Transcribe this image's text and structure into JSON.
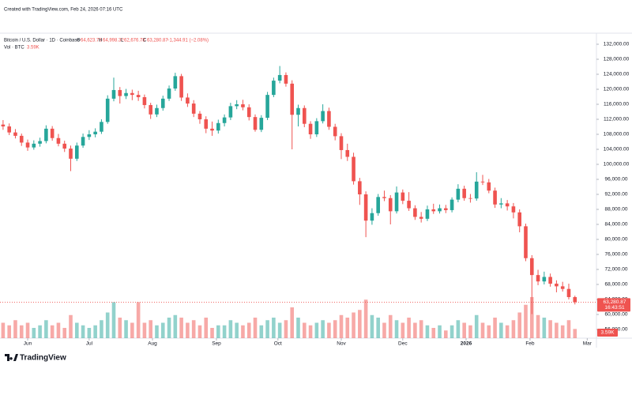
{
  "header": {
    "created": "Created with TradingView.com, Feb 24, 2026 07:16 UTC",
    "branding": "TradingView"
  },
  "chart_data": {
    "type": "candlestick",
    "legend": {
      "symbol": "Bitcoin / U.S. Dollar · 1D · Coinbase",
      "open_label": "O",
      "open": "64,623.78",
      "high_label": "H",
      "high": "64,998.32",
      "low_label": "L",
      "low": "62,676.78",
      "close_label": "C",
      "close": "63,280.87",
      "change": "−1,344.91 (−2.08%)",
      "volume_name": "Vol · BTC",
      "volume": "3.59K"
    },
    "up_color": "#26a69a",
    "down_color": "#ef5350",
    "ylim": [
      56000,
      132000
    ],
    "yticks": [
      {
        "value": 56000,
        "label": "56,000.00"
      },
      {
        "value": 60000,
        "label": "60,000.00"
      },
      {
        "value": 64000,
        "label": "64,000.00"
      },
      {
        "value": 68000,
        "label": "68,000.00"
      },
      {
        "value": 72000,
        "label": "72,000.00"
      },
      {
        "value": 76000,
        "label": "76,000.00"
      },
      {
        "value": 80000,
        "label": "80,000.00"
      },
      {
        "value": 84000,
        "label": "84,000.00"
      },
      {
        "value": 88000,
        "label": "88,000.00"
      },
      {
        "value": 92000,
        "label": "92,000.00"
      },
      {
        "value": 96000,
        "label": "96,000.00"
      },
      {
        "value": 100000,
        "label": "100,000.00"
      },
      {
        "value": 104000,
        "label": "104,000.00"
      },
      {
        "value": 108000,
        "label": "108,000.00"
      },
      {
        "value": 112000,
        "label": "112,000.00"
      },
      {
        "value": 116000,
        "label": "116,000.00"
      },
      {
        "value": 120000,
        "label": "120,000.00"
      },
      {
        "value": 124000,
        "label": "124,000.00"
      },
      {
        "value": 128000,
        "label": "128,000.00"
      },
      {
        "value": 132000,
        "label": "132,000.00"
      }
    ],
    "xlim": [
      -0.5,
      96.5
    ],
    "xticks": [
      {
        "value": 4,
        "label": "Jun"
      },
      {
        "value": 14,
        "label": "Jul"
      },
      {
        "value": 24.3,
        "label": "Aug"
      },
      {
        "value": 34.7,
        "label": "Sep"
      },
      {
        "value": 44.7,
        "label": "Oct"
      },
      {
        "value": 55,
        "label": "Nov"
      },
      {
        "value": 65,
        "label": "Dec"
      },
      {
        "value": 75.3,
        "label": "2026"
      },
      {
        "value": 85.7,
        "label": "Feb"
      },
      {
        "value": 95,
        "label": "Mar"
      }
    ],
    "grid": false,
    "last_close_label": "63,280.87",
    "countdown": "16:43:51",
    "ohlc": [
      [
        110600,
        111800,
        109200,
        110100
      ],
      [
        110100,
        110900,
        107800,
        108500
      ],
      [
        108500,
        109400,
        106900,
        107600
      ],
      [
        107600,
        108200,
        104900,
        105800
      ],
      [
        105800,
        106600,
        103600,
        104500
      ],
      [
        104500,
        106400,
        103900,
        105500
      ],
      [
        105500,
        107100,
        104700,
        106200
      ],
      [
        106200,
        110400,
        105600,
        109500
      ],
      [
        109500,
        110200,
        106300,
        107000
      ],
      [
        107000,
        108100,
        104800,
        105500
      ],
      [
        105500,
        106300,
        103300,
        104200
      ],
      [
        104200,
        105000,
        98200,
        101500
      ],
      [
        101500,
        105800,
        100900,
        105000
      ],
      [
        105000,
        108200,
        104400,
        107300
      ],
      [
        107300,
        109100,
        106500,
        108000
      ],
      [
        108000,
        109600,
        107200,
        108700
      ],
      [
        108700,
        112000,
        108100,
        111300
      ],
      [
        111300,
        118400,
        110800,
        117500
      ],
      [
        117500,
        123100,
        116800,
        119800
      ],
      [
        119800,
        120600,
        116200,
        118200
      ],
      [
        118200,
        120100,
        117400,
        119000
      ],
      [
        119000,
        119900,
        117100,
        118500
      ],
      [
        118500,
        119600,
        116900,
        117900
      ],
      [
        117900,
        118600,
        114900,
        115800
      ],
      [
        115800,
        116400,
        112100,
        113300
      ],
      [
        113300,
        115900,
        112600,
        115000
      ],
      [
        115000,
        118300,
        114300,
        117500
      ],
      [
        117500,
        121000,
        116900,
        120200
      ],
      [
        120200,
        124400,
        119600,
        123500
      ],
      [
        123500,
        124100,
        116900,
        117800
      ],
      [
        117800,
        118900,
        115300,
        116200
      ],
      [
        116200,
        117100,
        112600,
        113500
      ],
      [
        113500,
        114200,
        110800,
        112000
      ],
      [
        112000,
        112800,
        108300,
        109500
      ],
      [
        109500,
        111400,
        107600,
        109000
      ],
      [
        109000,
        111900,
        108200,
        111000
      ],
      [
        111000,
        113300,
        110100,
        112500
      ],
      [
        112500,
        116400,
        111800,
        115500
      ],
      [
        115500,
        117100,
        114700,
        116000
      ],
      [
        116000,
        117200,
        114400,
        115200
      ],
      [
        115200,
        116000,
        111700,
        112600
      ],
      [
        112600,
        113300,
        108700,
        109200
      ],
      [
        109200,
        113100,
        108600,
        112400
      ],
      [
        112400,
        119300,
        111800,
        118500
      ],
      [
        118500,
        123100,
        117900,
        122300
      ],
      [
        122300,
        126200,
        121600,
        123800
      ],
      [
        123800,
        124500,
        120700,
        121500
      ],
      [
        121500,
        122400,
        104000,
        113200
      ],
      [
        113200,
        115900,
        110100,
        115000
      ],
      [
        115000,
        115700,
        109900,
        110800
      ],
      [
        110800,
        111500,
        106800,
        108000
      ],
      [
        108000,
        112300,
        107300,
        111500
      ],
      [
        111500,
        116000,
        110900,
        114200
      ],
      [
        114200,
        115100,
        109200,
        110000
      ],
      [
        110000,
        110800,
        106400,
        107500
      ],
      [
        107500,
        108300,
        101400,
        103800
      ],
      [
        103800,
        105500,
        100900,
        102000
      ],
      [
        102000,
        103100,
        94600,
        95500
      ],
      [
        95500,
        96400,
        89200,
        92000
      ],
      [
        92000,
        92800,
        80600,
        85000
      ],
      [
        85000,
        88300,
        83900,
        87000
      ],
      [
        87000,
        92100,
        86300,
        91300
      ],
      [
        91300,
        93000,
        90200,
        91000
      ],
      [
        91000,
        91800,
        84000,
        87500
      ],
      [
        87500,
        94100,
        86900,
        92500
      ],
      [
        92500,
        93300,
        89400,
        90300
      ],
      [
        90300,
        92600,
        87600,
        88300
      ],
      [
        88300,
        89100,
        85200,
        86000
      ],
      [
        86000,
        87300,
        84500,
        85500
      ],
      [
        85500,
        89000,
        84900,
        88000
      ],
      [
        88000,
        89500,
        86800,
        87500
      ],
      [
        87500,
        89300,
        86900,
        88300
      ],
      [
        88300,
        89200,
        87000,
        87800
      ],
      [
        87800,
        91200,
        87200,
        90600
      ],
      [
        90600,
        94700,
        89900,
        93500
      ],
      [
        93500,
        94300,
        90300,
        91000
      ],
      [
        91000,
        92100,
        89800,
        90900
      ],
      [
        90900,
        97900,
        90300,
        95400
      ],
      [
        95400,
        97200,
        94500,
        95200
      ],
      [
        95200,
        96100,
        92300,
        93000
      ],
      [
        93000,
        93800,
        88400,
        89300
      ],
      [
        89300,
        91000,
        88300,
        89600
      ],
      [
        89600,
        90500,
        87700,
        88800
      ],
      [
        88800,
        89700,
        85600,
        87200
      ],
      [
        87200,
        88000,
        81900,
        83500
      ],
      [
        83500,
        84200,
        74200,
        75000
      ],
      [
        75000,
        75800,
        60100,
        70500
      ],
      [
        70500,
        71900,
        67800,
        68800
      ],
      [
        68800,
        71400,
        68000,
        70000
      ],
      [
        70000,
        70900,
        67400,
        68200
      ],
      [
        68200,
        69100,
        65900,
        67500
      ],
      [
        67500,
        68700,
        66100,
        66800
      ],
      [
        66800,
        68200,
        64000,
        64625.78
      ],
      [
        64623.78,
        64998.32,
        62676.78,
        63280.87
      ]
    ],
    "volume": [
      6,
      5,
      7,
      5,
      6,
      4,
      5,
      7,
      5,
      6,
      4,
      9,
      6,
      5,
      4,
      5,
      7,
      10,
      14,
      8,
      7,
      6,
      14,
      6,
      7,
      5,
      6,
      8,
      9,
      8,
      6,
      7,
      5,
      8,
      4,
      5,
      5,
      7,
      6,
      5,
      6,
      8,
      5,
      7,
      8,
      6,
      7,
      12,
      8,
      6,
      5,
      6,
      7,
      6,
      7,
      9,
      8,
      10,
      11,
      15,
      9,
      8,
      6,
      9,
      7,
      6,
      8,
      6,
      7,
      5,
      4,
      5,
      3,
      5,
      7,
      6,
      5,
      9,
      6,
      5,
      8,
      6,
      5,
      7,
      10,
      13,
      16,
      9,
      8,
      7,
      6,
      5,
      7,
      3.59
    ],
    "volume_value_labels": {
      "93": "3.59K"
    },
    "y2lim": [
      0,
      16
    ]
  }
}
